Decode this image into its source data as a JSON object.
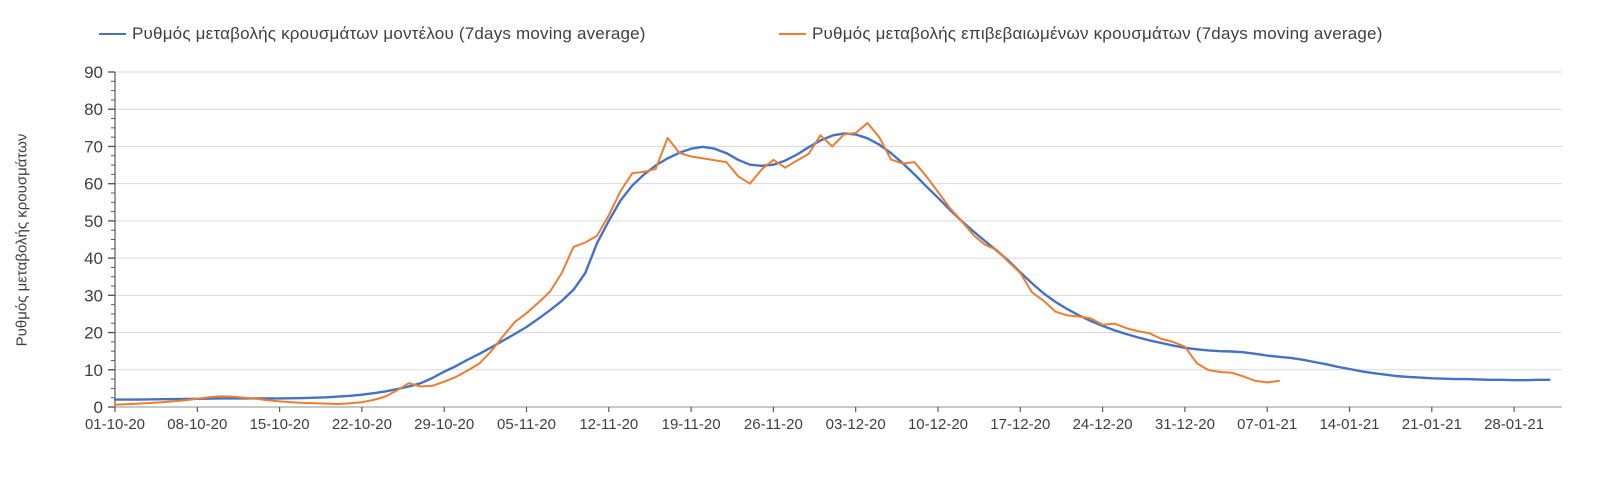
{
  "legend": {
    "model_label": "Ρυθμός μεταβολής κρουσμάτων μοντέλου (7days moving average)",
    "confirmed_label": "Ρυθμός μεταβολής επιβεβαιωμένων κρουσμάτων (7days moving average)"
  },
  "colors": {
    "model": "#4472C4",
    "confirmed": "#ED7D31",
    "grid": "#D9D9D9",
    "axis": "#A6A6A6",
    "tick": "#595959",
    "text": "#3F3F3F"
  },
  "chart_data": {
    "type": "line",
    "title": "",
    "xlabel": "",
    "ylabel": "Ρυθμός μεταβολής κρουσμάτων",
    "ylim": [
      0,
      90
    ],
    "y_ticks": [
      0,
      10,
      20,
      30,
      40,
      50,
      60,
      70,
      80,
      90
    ],
    "y_minor_tick_step": 2.5,
    "grid": "horizontal",
    "legend_position": "top",
    "x_unit": "days since 01-10-20",
    "x_days_per_tick": 7,
    "x_tick_labels": [
      "01-10-20",
      "08-10-20",
      "15-10-20",
      "22-10-20",
      "29-10-20",
      "05-11-20",
      "12-11-20",
      "19-11-20",
      "26-11-20",
      "03-12-20",
      "10-12-20",
      "17-12-20",
      "24-12-20",
      "31-12-20",
      "07-01-21",
      "14-01-21",
      "21-01-21",
      "28-01-21"
    ],
    "series": [
      {
        "name": "Ρυθμός μεταβολής κρουσμάτων μοντέλου (7days moving average)",
        "color": "#4472C4",
        "points": [
          [
            0,
            2.0
          ],
          [
            2,
            2.0
          ],
          [
            4,
            2.1
          ],
          [
            7,
            2.2
          ],
          [
            9,
            2.3
          ],
          [
            11,
            2.3
          ],
          [
            14,
            2.3
          ],
          [
            16,
            2.4
          ],
          [
            18,
            2.6
          ],
          [
            20,
            3.0
          ],
          [
            21,
            3.3
          ],
          [
            22,
            3.7
          ],
          [
            23,
            4.2
          ],
          [
            24,
            4.8
          ],
          [
            25,
            5.5
          ],
          [
            26,
            6.4
          ],
          [
            27,
            7.8
          ],
          [
            28,
            9.5
          ],
          [
            29,
            11.0
          ],
          [
            30,
            12.7
          ],
          [
            31,
            14.3
          ],
          [
            32,
            16.0
          ],
          [
            33,
            17.8
          ],
          [
            34,
            19.6
          ],
          [
            35,
            21.5
          ],
          [
            36,
            23.7
          ],
          [
            37,
            26.0
          ],
          [
            38,
            28.5
          ],
          [
            39,
            31.5
          ],
          [
            40,
            36.0
          ],
          [
            41,
            44.0
          ],
          [
            42,
            50.0
          ],
          [
            43,
            55.5
          ],
          [
            44,
            59.5
          ],
          [
            45,
            62.5
          ],
          [
            46,
            64.9
          ],
          [
            47,
            66.8
          ],
          [
            48,
            68.3
          ],
          [
            49,
            69.4
          ],
          [
            50,
            69.9
          ],
          [
            51,
            69.4
          ],
          [
            52,
            68.2
          ],
          [
            53,
            66.4
          ],
          [
            54,
            65.1
          ],
          [
            55,
            64.8
          ],
          [
            56,
            65.1
          ],
          [
            57,
            66.2
          ],
          [
            58,
            67.8
          ],
          [
            59,
            69.8
          ],
          [
            60,
            71.6
          ],
          [
            61,
            72.9
          ],
          [
            62,
            73.5
          ],
          [
            63,
            73.2
          ],
          [
            64,
            72.2
          ],
          [
            65,
            70.5
          ],
          [
            66,
            68.2
          ],
          [
            67,
            65.5
          ],
          [
            68,
            62.5
          ],
          [
            69,
            59.3
          ],
          [
            70,
            56.2
          ],
          [
            71,
            53.0
          ],
          [
            72,
            50.0
          ],
          [
            73,
            47.2
          ],
          [
            74,
            44.6
          ],
          [
            75,
            42.0
          ],
          [
            76,
            39.3
          ],
          [
            77,
            36.2
          ],
          [
            78,
            33.2
          ],
          [
            79,
            30.5
          ],
          [
            80,
            28.2
          ],
          [
            81,
            26.3
          ],
          [
            82,
            24.6
          ],
          [
            83,
            23.1
          ],
          [
            84,
            21.8
          ],
          [
            85,
            20.6
          ],
          [
            86,
            19.6
          ],
          [
            87,
            18.7
          ],
          [
            88,
            17.9
          ],
          [
            89,
            17.2
          ],
          [
            90,
            16.5
          ],
          [
            91,
            15.9
          ],
          [
            92,
            15.5
          ],
          [
            93,
            15.2
          ],
          [
            94,
            15.0
          ],
          [
            95,
            14.9
          ],
          [
            96,
            14.7
          ],
          [
            97,
            14.3
          ],
          [
            98,
            13.8
          ],
          [
            99,
            13.5
          ],
          [
            100,
            13.2
          ],
          [
            101,
            12.7
          ],
          [
            102,
            12.1
          ],
          [
            103,
            11.5
          ],
          [
            104,
            10.8
          ],
          [
            105,
            10.2
          ],
          [
            106,
            9.6
          ],
          [
            107,
            9.1
          ],
          [
            108,
            8.7
          ],
          [
            109,
            8.3
          ],
          [
            110,
            8.1
          ],
          [
            111,
            7.9
          ],
          [
            112,
            7.7
          ],
          [
            113,
            7.6
          ],
          [
            114,
            7.5
          ],
          [
            115,
            7.5
          ],
          [
            116,
            7.4
          ],
          [
            117,
            7.3
          ],
          [
            118,
            7.3
          ],
          [
            119,
            7.2
          ],
          [
            120,
            7.2
          ],
          [
            121,
            7.3
          ],
          [
            122,
            7.3
          ]
        ]
      },
      {
        "name": "Ρυθμός μεταβολής επιβεβαιωμένων κρουσμάτων (7days moving average)",
        "color": "#ED7D31",
        "points": [
          [
            0,
            0.6
          ],
          [
            2,
            0.9
          ],
          [
            4,
            1.3
          ],
          [
            6,
            1.8
          ],
          [
            7,
            2.2
          ],
          [
            8,
            2.6
          ],
          [
            9,
            2.9
          ],
          [
            10,
            2.8
          ],
          [
            11,
            2.5
          ],
          [
            12,
            2.2
          ],
          [
            13,
            1.8
          ],
          [
            14,
            1.5
          ],
          [
            15,
            1.3
          ],
          [
            16,
            1.1
          ],
          [
            17,
            1.0
          ],
          [
            18,
            0.9
          ],
          [
            19,
            0.8
          ],
          [
            20,
            1.0
          ],
          [
            21,
            1.3
          ],
          [
            22,
            1.9
          ],
          [
            23,
            2.8
          ],
          [
            24,
            4.5
          ],
          [
            25,
            6.4
          ],
          [
            26,
            5.5
          ],
          [
            27,
            5.7
          ],
          [
            28,
            6.8
          ],
          [
            29,
            8.1
          ],
          [
            30,
            9.8
          ],
          [
            31,
            11.7
          ],
          [
            32,
            15.0
          ],
          [
            33,
            19.0
          ],
          [
            34,
            22.8
          ],
          [
            35,
            25.2
          ],
          [
            36,
            28.0
          ],
          [
            37,
            31.0
          ],
          [
            38,
            36.0
          ],
          [
            39,
            43.0
          ],
          [
            40,
            44.2
          ],
          [
            41,
            46.0
          ],
          [
            42,
            51.5
          ],
          [
            43,
            58.0
          ],
          [
            44,
            62.8
          ],
          [
            45,
            63.2
          ],
          [
            46,
            64.0
          ],
          [
            47,
            72.3
          ],
          [
            48,
            68.3
          ],
          [
            49,
            67.3
          ],
          [
            50,
            66.8
          ],
          [
            51,
            66.3
          ],
          [
            52,
            65.8
          ],
          [
            53,
            62.0
          ],
          [
            54,
            60.0
          ],
          [
            55,
            63.8
          ],
          [
            56,
            66.4
          ],
          [
            57,
            64.3
          ],
          [
            58,
            66.2
          ],
          [
            59,
            68.0
          ],
          [
            60,
            73.0
          ],
          [
            61,
            70.0
          ],
          [
            62,
            73.2
          ],
          [
            63,
            73.6
          ],
          [
            64,
            76.3
          ],
          [
            65,
            72.5
          ],
          [
            66,
            66.5
          ],
          [
            67,
            65.4
          ],
          [
            68,
            65.8
          ],
          [
            69,
            62.0
          ],
          [
            70,
            57.8
          ],
          [
            71,
            53.5
          ],
          [
            72,
            50.0
          ],
          [
            73,
            46.2
          ],
          [
            74,
            43.6
          ],
          [
            75,
            42.2
          ],
          [
            76,
            39.0
          ],
          [
            77,
            36.0
          ],
          [
            78,
            30.8
          ],
          [
            79,
            28.5
          ],
          [
            80,
            25.6
          ],
          [
            81,
            24.6
          ],
          [
            82,
            24.3
          ],
          [
            83,
            23.8
          ],
          [
            84,
            22.1
          ],
          [
            85,
            22.4
          ],
          [
            86,
            21.2
          ],
          [
            87,
            20.4
          ],
          [
            88,
            19.8
          ],
          [
            89,
            18.3
          ],
          [
            90,
            17.5
          ],
          [
            91,
            16.2
          ],
          [
            92,
            11.8
          ],
          [
            93,
            9.9
          ],
          [
            94,
            9.4
          ],
          [
            95,
            9.2
          ],
          [
            96,
            8.2
          ],
          [
            97,
            7.0
          ],
          [
            98,
            6.6
          ],
          [
            99,
            7.0
          ]
        ]
      }
    ]
  }
}
